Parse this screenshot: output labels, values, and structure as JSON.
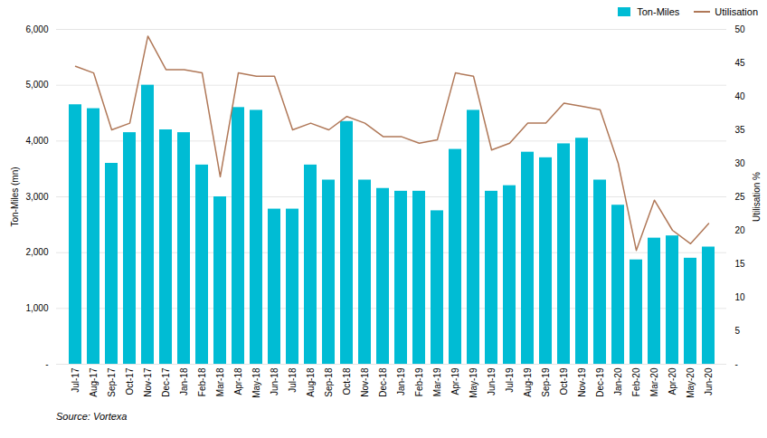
{
  "chart_data": {
    "type": "bar",
    "categories": [
      "Jul-17",
      "Aug-17",
      "Sep-17",
      "Oct-17",
      "Nov-17",
      "Dec-17",
      "Jan-18",
      "Feb-18",
      "Mar-18",
      "Apr-18",
      "May-18",
      "Jun-18",
      "Jul-18",
      "Aug-18",
      "Sep-18",
      "Oct-18",
      "Nov-18",
      "Dec-18",
      "Jan-19",
      "Feb-19",
      "Mar-19",
      "Apr-19",
      "May-19",
      "Jun-19",
      "Jul-19",
      "Aug-19",
      "Sep-19",
      "Oct-19",
      "Nov-19",
      "Dec-19",
      "Jan-20",
      "Feb-20",
      "Mar-20",
      "Apr-20",
      "May-20",
      "Jun-20"
    ],
    "series": [
      {
        "name": "Ton-Miles",
        "type": "bar",
        "color": "#00bcd4",
        "values": [
          4650,
          4580,
          3600,
          4150,
          5000,
          4200,
          4150,
          3570,
          3000,
          4600,
          4550,
          2780,
          2780,
          3570,
          3300,
          4350,
          3300,
          3150,
          3100,
          3100,
          2750,
          3850,
          4550,
          3100,
          3200,
          3800,
          3700,
          3950,
          4050,
          3300,
          2850,
          1870,
          2260,
          2300,
          1900,
          2100
        ]
      },
      {
        "name": "Utilisation",
        "type": "line",
        "color": "#b07858",
        "axis": "y2",
        "values": [
          44.5,
          43.5,
          35,
          36,
          49,
          44,
          44,
          43.5,
          28,
          43.5,
          43,
          43,
          35,
          36,
          35,
          37,
          36,
          34,
          34,
          33,
          33.5,
          43.5,
          43,
          32,
          33,
          36,
          36,
          39,
          38.5,
          38,
          30,
          17,
          24.5,
          20,
          18,
          21
        ]
      }
    ],
    "ylabel": "Ton-Miles (mn)",
    "y2label": "Utilisation %",
    "ylim": [
      0,
      6000
    ],
    "yticks": [
      {
        "value": 0,
        "label": "-"
      },
      {
        "value": 1000,
        "label": "1,000"
      },
      {
        "value": 2000,
        "label": "2,000"
      },
      {
        "value": 3000,
        "label": "3,000"
      },
      {
        "value": 4000,
        "label": "4,000"
      },
      {
        "value": 5000,
        "label": "5,000"
      },
      {
        "value": 6000,
        "label": "6,000"
      }
    ],
    "y2lim": [
      0,
      50
    ],
    "y2ticks": [
      {
        "value": 0,
        "label": "-"
      },
      5,
      10,
      15,
      20,
      25,
      30,
      35,
      40,
      45,
      50
    ],
    "grid": true,
    "legend": "upper right",
    "annotations": [
      "Source: Vortexa"
    ]
  }
}
